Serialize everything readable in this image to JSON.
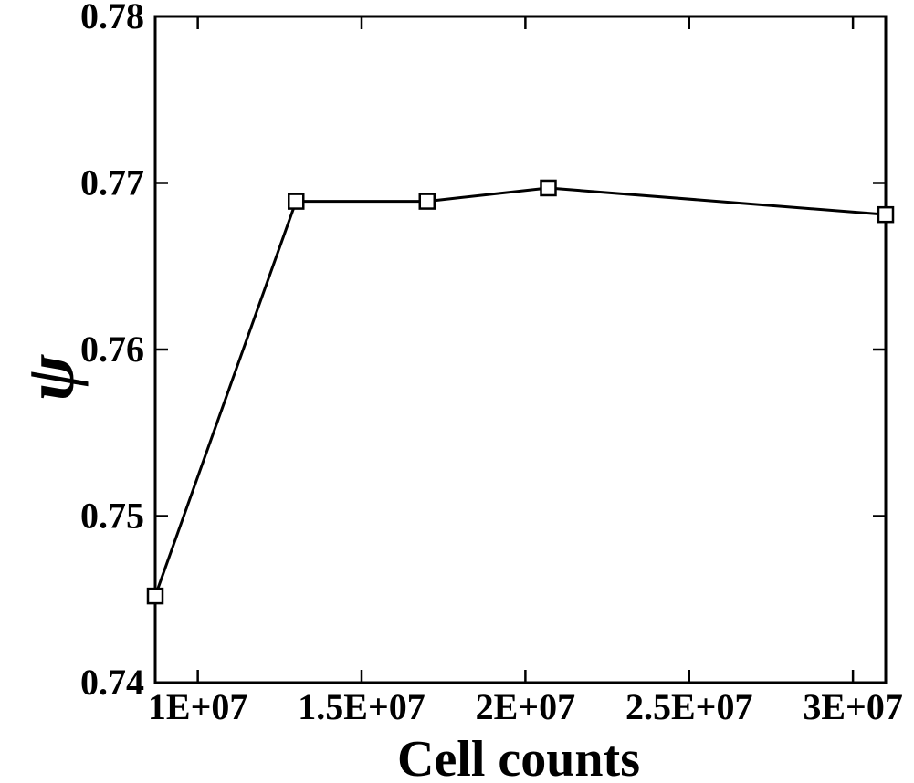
{
  "chart_data": {
    "type": "line",
    "xlabel": "Cell counts",
    "ylabel": "ψ",
    "xlim": [
      8700000,
      31000000
    ],
    "ylim": [
      0.74,
      0.78
    ],
    "x_ticks": [
      {
        "value": 10000000,
        "label": "1E+07"
      },
      {
        "value": 15000000,
        "label": "1.5E+07"
      },
      {
        "value": 20000000,
        "label": "2E+07"
      },
      {
        "value": 25000000,
        "label": "2.5E+07"
      },
      {
        "value": 30000000,
        "label": "3E+07"
      }
    ],
    "y_ticks": [
      {
        "value": 0.74,
        "label": "0.74"
      },
      {
        "value": 0.75,
        "label": "0.75"
      },
      {
        "value": 0.76,
        "label": "0.76"
      },
      {
        "value": 0.77,
        "label": "0.77"
      },
      {
        "value": 0.78,
        "label": "0.78"
      }
    ],
    "series": [
      {
        "marker": "square",
        "color": "#000000",
        "x": [
          8700000,
          13000000,
          17000000,
          20700000,
          31000000
        ],
        "y": [
          0.7452,
          0.7689,
          0.7689,
          0.7697,
          0.7681
        ]
      }
    ],
    "grid": false,
    "legend": "none"
  }
}
